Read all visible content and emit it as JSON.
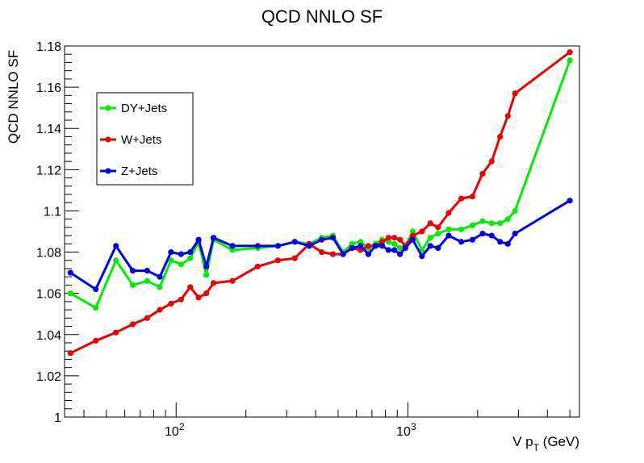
{
  "chart_data": {
    "type": "line",
    "title": "QCD NNLO SF",
    "xlabel": {
      "main": "V p",
      "sub": "T",
      "unit": " (GeV)"
    },
    "ylabel": "QCD NNLO SF",
    "x_scale": "log",
    "xlim": [
      33,
      5500
    ],
    "ylim": [
      1.0,
      1.18
    ],
    "y_ticks": [
      "1",
      "1.02",
      "1.04",
      "1.06",
      "1.08",
      "1.1",
      "1.12",
      "1.14",
      "1.16",
      "1.18"
    ],
    "y_tick_values": [
      1.0,
      1.02,
      1.04,
      1.06,
      1.08,
      1.1,
      1.12,
      1.14,
      1.16,
      1.18
    ],
    "x_ticks": [
      {
        "value": 100,
        "base": "10",
        "exp": "2"
      },
      {
        "value": 1000,
        "base": "10",
        "exp": "3"
      }
    ],
    "grid": false,
    "legend_position": "top-left",
    "series": [
      {
        "name": "DY+Jets",
        "color": "#00ee00",
        "x": [
          35,
          45,
          55,
          65,
          75,
          85,
          95,
          105,
          115,
          125,
          135,
          145,
          175,
          225,
          275,
          325,
          375,
          425,
          475,
          525,
          575,
          625,
          675,
          725,
          775,
          825,
          875,
          925,
          975,
          1050,
          1150,
          1250,
          1350,
          1500,
          1700,
          1900,
          2100,
          2300,
          2500,
          2700,
          2900,
          5000
        ],
        "y": [
          1.06,
          1.053,
          1.076,
          1.064,
          1.066,
          1.063,
          1.076,
          1.074,
          1.077,
          1.085,
          1.069,
          1.086,
          1.081,
          1.082,
          1.083,
          1.085,
          1.084,
          1.087,
          1.088,
          1.08,
          1.084,
          1.085,
          1.082,
          1.084,
          1.086,
          1.085,
          1.084,
          1.082,
          1.083,
          1.09,
          1.081,
          1.087,
          1.089,
          1.091,
          1.091,
          1.093,
          1.095,
          1.094,
          1.094,
          1.096,
          1.1,
          1.173
        ]
      },
      {
        "name": "W+Jets",
        "color": "#ee0000",
        "x": [
          35,
          45,
          55,
          65,
          75,
          85,
          95,
          105,
          115,
          125,
          135,
          145,
          175,
          225,
          275,
          325,
          375,
          425,
          475,
          525,
          575,
          625,
          675,
          725,
          775,
          825,
          875,
          925,
          975,
          1050,
          1150,
          1250,
          1350,
          1500,
          1700,
          1900,
          2100,
          2300,
          2500,
          2700,
          2900,
          5000
        ],
        "y": [
          1.031,
          1.037,
          1.041,
          1.045,
          1.048,
          1.052,
          1.055,
          1.057,
          1.063,
          1.058,
          1.06,
          1.065,
          1.066,
          1.073,
          1.076,
          1.077,
          1.084,
          1.08,
          1.079,
          1.079,
          1.082,
          1.081,
          1.083,
          1.083,
          1.085,
          1.087,
          1.087,
          1.086,
          1.083,
          1.088,
          1.09,
          1.094,
          1.092,
          1.099,
          1.106,
          1.107,
          1.118,
          1.124,
          1.136,
          1.146,
          1.157,
          1.177
        ]
      },
      {
        "name": "Z+Jets",
        "color": "#0000ee",
        "x": [
          35,
          45,
          55,
          65,
          75,
          85,
          95,
          105,
          115,
          125,
          135,
          145,
          175,
          225,
          275,
          325,
          375,
          425,
          475,
          525,
          575,
          625,
          675,
          725,
          775,
          825,
          875,
          925,
          975,
          1050,
          1150,
          1250,
          1350,
          1500,
          1700,
          1900,
          2100,
          2300,
          2500,
          2700,
          2900,
          5000
        ],
        "y": [
          1.07,
          1.062,
          1.083,
          1.071,
          1.071,
          1.068,
          1.08,
          1.079,
          1.08,
          1.086,
          1.073,
          1.087,
          1.083,
          1.083,
          1.083,
          1.085,
          1.083,
          1.086,
          1.087,
          1.079,
          1.082,
          1.083,
          1.079,
          1.083,
          1.083,
          1.081,
          1.081,
          1.079,
          1.082,
          1.086,
          1.078,
          1.083,
          1.082,
          1.088,
          1.085,
          1.086,
          1.089,
          1.088,
          1.085,
          1.084,
          1.089,
          1.105
        ]
      }
    ]
  }
}
